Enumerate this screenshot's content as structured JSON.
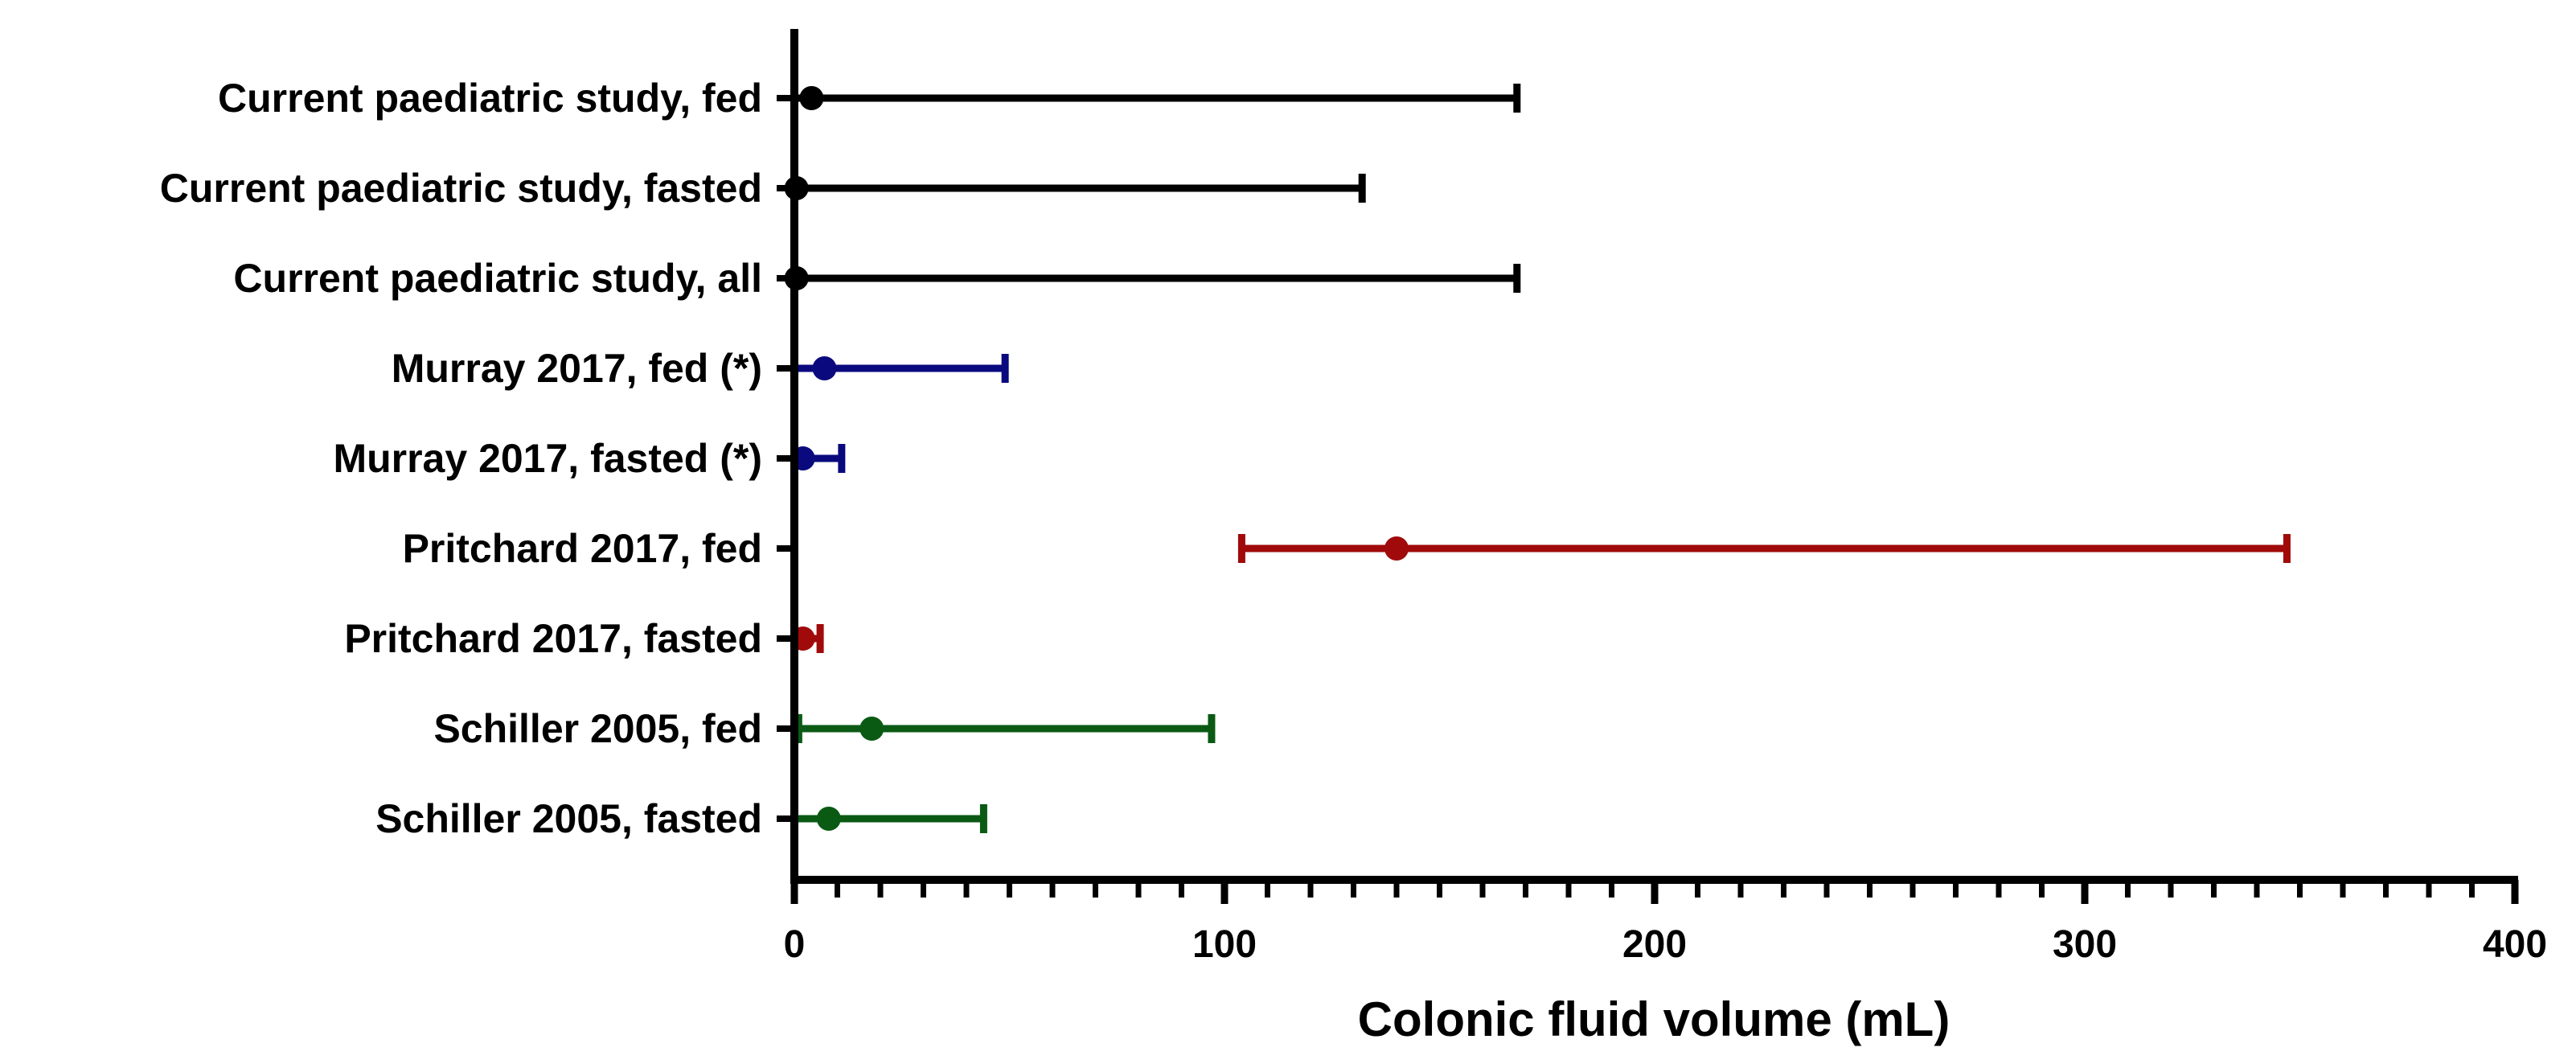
{
  "chart_data": {
    "type": "errorbar",
    "orientation": "horizontal",
    "xlabel": "Colonic fluid volume (mL)",
    "xlim": [
      0,
      400
    ],
    "x_major_ticks": [
      0,
      100,
      200,
      300,
      400
    ],
    "x_minor_step": 10,
    "grid": false,
    "legend": "none",
    "categories": [
      {
        "label": "Current paediatric study, fed",
        "median": 4,
        "low": 0,
        "high": 168,
        "color": "#000000"
      },
      {
        "label": "Current paediatric study, fasted",
        "median": 0.5,
        "low": 0,
        "high": 132,
        "color": "#000000"
      },
      {
        "label": "Current paediatric study, all",
        "median": 0.5,
        "low": 0,
        "high": 168,
        "color": "#000000"
      },
      {
        "label": "Murray 2017, fed (*)",
        "median": 7,
        "low": 0,
        "high": 49,
        "color": "#0a0a7e"
      },
      {
        "label": "Murray 2017, fasted (*)",
        "median": 2,
        "low": 0,
        "high": 11,
        "color": "#0a0a7e"
      },
      {
        "label": "Pritchard 2017, fed",
        "median": 140,
        "low": 104,
        "high": 347,
        "color": "#a00a0a"
      },
      {
        "label": "Pritchard 2017, fasted",
        "median": 2,
        "low": 0,
        "high": 6,
        "color": "#a00a0a"
      },
      {
        "label": "Schiller 2005, fed",
        "median": 18,
        "low": 1,
        "high": 97,
        "color": "#0a5a14"
      },
      {
        "label": "Schiller 2005, fasted",
        "median": 8,
        "low": 0,
        "high": 44,
        "color": "#0a5a14"
      }
    ]
  }
}
